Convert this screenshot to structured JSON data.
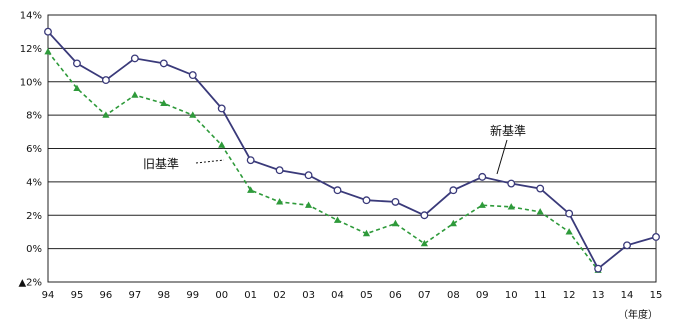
{
  "chart_data": {
    "type": "line",
    "x": [
      "94",
      "95",
      "96",
      "97",
      "98",
      "99",
      "00",
      "01",
      "02",
      "03",
      "04",
      "05",
      "06",
      "07",
      "08",
      "09",
      "10",
      "11",
      "12",
      "13",
      "14",
      "15"
    ],
    "x_unit_label": "（年度）",
    "ylim": [
      -2,
      14
    ],
    "yticks": [
      {
        "value": 14,
        "label": "14%"
      },
      {
        "value": 12,
        "label": "12%"
      },
      {
        "value": 10,
        "label": "10%"
      },
      {
        "value": 8,
        "label": "8%"
      },
      {
        "value": 6,
        "label": "6%"
      },
      {
        "value": 4,
        "label": "4%"
      },
      {
        "value": 2,
        "label": "2%"
      },
      {
        "value": 0,
        "label": "0%"
      },
      {
        "value": -2,
        "label": "▲2%"
      }
    ],
    "grid": true,
    "series": [
      {
        "name": "新基準",
        "color": "#3a3a7a",
        "marker": "open-circle",
        "line": "solid",
        "values": [
          13.0,
          11.1,
          10.1,
          11.4,
          11.1,
          10.4,
          8.4,
          5.3,
          4.7,
          4.4,
          3.5,
          2.9,
          2.8,
          2.0,
          3.5,
          4.3,
          3.9,
          3.6,
          2.1,
          -1.2,
          0.2,
          0.7
        ]
      },
      {
        "name": "旧基準",
        "color": "#2e9a3a",
        "marker": "filled-triangle",
        "line": "dashed",
        "values": [
          11.8,
          9.6,
          8.0,
          9.2,
          8.7,
          8.0,
          6.2,
          3.5,
          2.8,
          2.6,
          1.7,
          0.9,
          1.5,
          0.3,
          1.5,
          2.6,
          2.5,
          2.2,
          1.0,
          -1.3,
          null,
          null
        ]
      }
    ]
  }
}
